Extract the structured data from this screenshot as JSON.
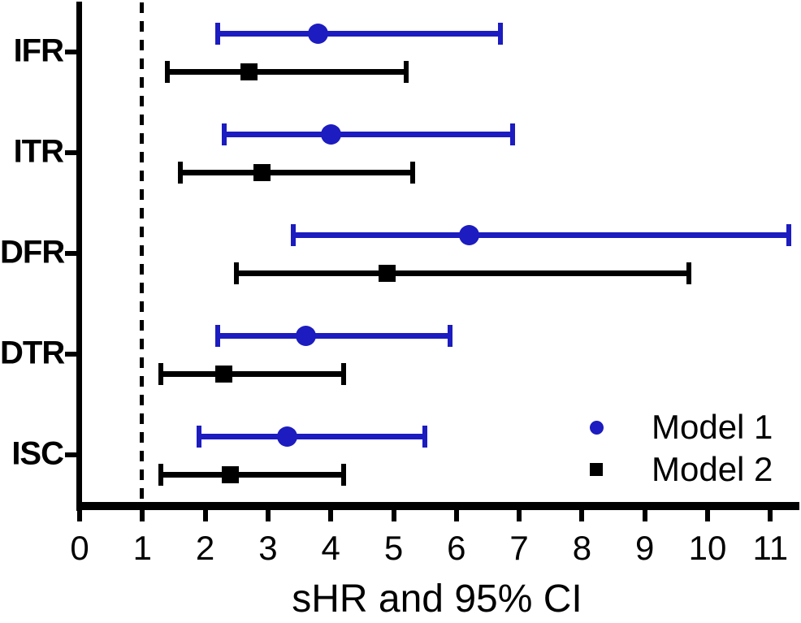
{
  "chart_data": {
    "type": "scatter",
    "subtype": "forest-plot-with-error-bars",
    "title": "",
    "xlabel": "sHR and 95% CI",
    "ylabel": "",
    "xlim": [
      0,
      11.5
    ],
    "xticks": [
      "0",
      "1",
      "2",
      "3",
      "4",
      "5",
      "6",
      "7",
      "8",
      "9",
      "10",
      "11"
    ],
    "reference_line_x": 1,
    "grid": "off",
    "categories": [
      "IFR",
      "ITR",
      "DFR",
      "DTR",
      "ISC"
    ],
    "series": [
      {
        "name": "Model 1",
        "marker": "circle",
        "color": "#1C1CC0",
        "points": [
          {
            "category": "IFR",
            "estimate": 3.8,
            "ci_low": 2.2,
            "ci_high": 6.7
          },
          {
            "category": "ITR",
            "estimate": 4.0,
            "ci_low": 2.3,
            "ci_high": 6.9
          },
          {
            "category": "DFR",
            "estimate": 6.2,
            "ci_low": 3.4,
            "ci_high": 11.3
          },
          {
            "category": "DTR",
            "estimate": 3.6,
            "ci_low": 2.2,
            "ci_high": 5.9
          },
          {
            "category": "ISC",
            "estimate": 3.3,
            "ci_low": 1.9,
            "ci_high": 5.5
          }
        ]
      },
      {
        "name": "Model 2",
        "marker": "square",
        "color": "#000000",
        "points": [
          {
            "category": "IFR",
            "estimate": 2.7,
            "ci_low": 1.4,
            "ci_high": 5.2
          },
          {
            "category": "ITR",
            "estimate": 2.9,
            "ci_low": 1.6,
            "ci_high": 5.3
          },
          {
            "category": "DFR",
            "estimate": 4.9,
            "ci_low": 2.5,
            "ci_high": 9.7
          },
          {
            "category": "DTR",
            "estimate": 2.3,
            "ci_low": 1.3,
            "ci_high": 4.2
          },
          {
            "category": "ISC",
            "estimate": 2.4,
            "ci_low": 1.3,
            "ci_high": 4.2
          }
        ]
      }
    ],
    "legend": {
      "position": "lower-right",
      "entries": [
        "Model 1",
        "Model 2"
      ]
    }
  },
  "colors": {
    "background": "#FFFFFF",
    "axis": "#000000",
    "model1_blue": "#1C1CC0",
    "model2_black": "#000000"
  }
}
